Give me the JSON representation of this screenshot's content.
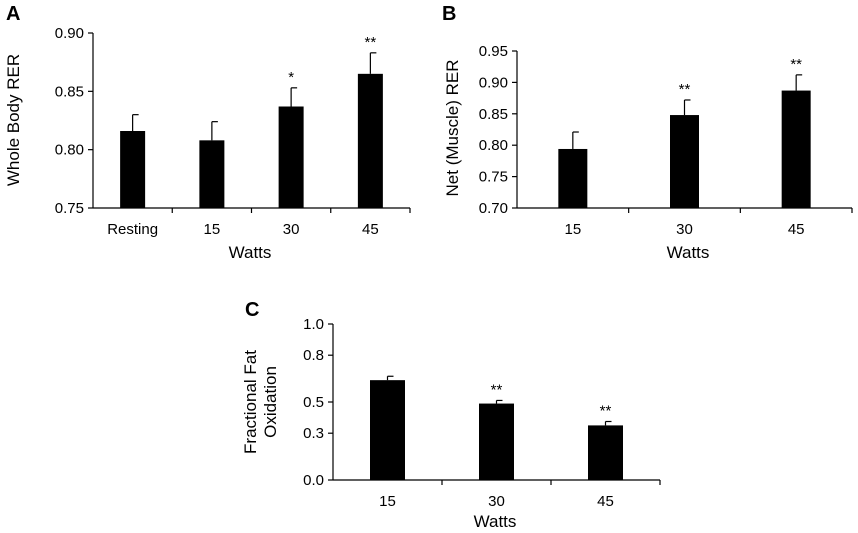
{
  "chart_data": [
    {
      "panel": "A",
      "type": "bar",
      "categories": [
        "Resting",
        "15",
        "30",
        "45"
      ],
      "values": [
        0.816,
        0.808,
        0.837,
        0.865
      ],
      "errors": [
        0.014,
        0.016,
        0.016,
        0.018
      ],
      "significance": [
        "",
        "",
        "*",
        "**"
      ],
      "xlabel": "Watts",
      "ylabel": "Whole Body RER",
      "ylim": [
        0.75,
        0.9
      ],
      "yticks": [
        "0.75",
        "0.80",
        "0.85",
        "0.90"
      ]
    },
    {
      "panel": "B",
      "type": "bar",
      "categories": [
        "15",
        "30",
        "45"
      ],
      "values": [
        0.794,
        0.848,
        0.887
      ],
      "errors": [
        0.027,
        0.024,
        0.025
      ],
      "significance": [
        "",
        "**",
        "**"
      ],
      "xlabel": "Watts",
      "ylabel": "Net (Muscle) RER",
      "ylim": [
        0.7,
        0.95
      ],
      "yticks": [
        "0.70",
        "0.75",
        "0.80",
        "0.85",
        "0.90",
        "0.95"
      ]
    },
    {
      "panel": "C",
      "type": "bar",
      "categories": [
        "15",
        "30",
        "45"
      ],
      "values": [
        0.64,
        0.49,
        0.35
      ],
      "errors": [
        0.025,
        0.02,
        0.025
      ],
      "significance": [
        "",
        "**",
        "**"
      ],
      "xlabel": "Watts",
      "ylabel": [
        "Fractional Fat",
        "Oxidation"
      ],
      "ylim": [
        0.0,
        1.0
      ],
      "yticks": [
        "0.0",
        "0.3",
        "0.5",
        "0.8",
        "1.0"
      ]
    }
  ]
}
